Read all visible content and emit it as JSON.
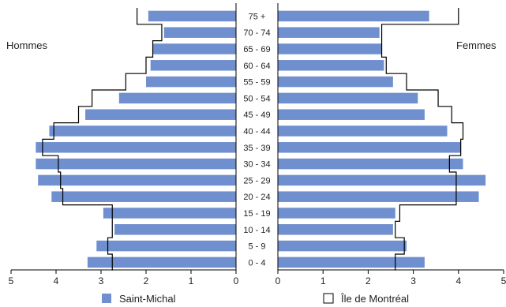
{
  "chart_data": {
    "type": "bar",
    "subtype": "population-pyramid",
    "left_label": "Hommes",
    "right_label": "Femmes",
    "age_groups": [
      "75 +",
      "70 - 74",
      "65 - 69",
      "60 - 64",
      "55 - 59",
      "50 - 54",
      "45 - 49",
      "40 - 44",
      "35 - 39",
      "30 - 34",
      "25 - 29",
      "20 - 24",
      "15 - 19",
      "10 - 14",
      "5 - 9",
      "0 - 4"
    ],
    "xlim": [
      0,
      5
    ],
    "left_ticks": [
      "5",
      "4",
      "3",
      "2",
      "1",
      "0"
    ],
    "right_ticks": [
      "0",
      "1",
      "2",
      "3",
      "4",
      "5"
    ],
    "series": [
      {
        "name": "Saint-Michal",
        "style": "bars",
        "color": "#6f8fcf",
        "men": [
          1.95,
          1.6,
          1.85,
          1.9,
          2.0,
          2.6,
          3.35,
          4.15,
          4.45,
          4.45,
          4.4,
          4.1,
          2.95,
          2.7,
          3.1,
          3.3
        ],
        "women": [
          3.35,
          2.25,
          2.3,
          2.35,
          2.55,
          3.1,
          3.25,
          3.75,
          4.05,
          4.1,
          4.6,
          4.45,
          2.6,
          2.55,
          2.85,
          3.25
        ]
      },
      {
        "name": "Île de Montréal",
        "style": "outline",
        "color": "#000000",
        "men": [
          2.2,
          1.65,
          1.85,
          2.0,
          2.45,
          3.2,
          3.5,
          4.05,
          4.3,
          3.95,
          3.9,
          3.85,
          2.75,
          2.75,
          2.85,
          2.75
        ],
        "women": [
          4.0,
          2.3,
          2.3,
          2.4,
          2.85,
          3.55,
          3.85,
          4.1,
          4.05,
          3.8,
          3.95,
          3.95,
          2.7,
          2.6,
          2.8,
          2.6
        ]
      }
    ],
    "legend_position": "bottom"
  }
}
